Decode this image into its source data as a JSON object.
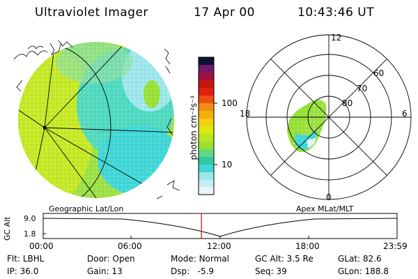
{
  "header": {
    "title": "Ultraviolet Imager",
    "date": "17 Apr 00",
    "time": "10:43:46 UT"
  },
  "colorbar": {
    "unit_label": "photon cm⁻²s⁻¹",
    "ticks": [
      "100",
      "10"
    ],
    "scale": "log",
    "colors": [
      "#e8f4f8",
      "#9fe6ec",
      "#40d6d6",
      "#30c8a0",
      "#9ae030",
      "#d8ec10",
      "#f4d010",
      "#f4a010",
      "#ec5010",
      "#c41810",
      "#8c0830",
      "#3c1050",
      "#101030"
    ]
  },
  "polar": {
    "clock_labels": {
      "top": "12",
      "left": "18",
      "right": "6",
      "bottom": "0"
    },
    "lat_labels": [
      "60",
      "70",
      "80"
    ]
  },
  "captions": {
    "left": "Geographic Lat/Lon",
    "right": "Apex MLat/MLT"
  },
  "timeline": {
    "axis_label": "GC Alt",
    "y_ticks": [
      "9.0",
      "1.8"
    ],
    "x_ticks": [
      "00:00",
      "06:00",
      "12:00",
      "18:00",
      "23:59"
    ],
    "current_time_fraction": 0.4471
  },
  "status": {
    "row1": [
      {
        "label": "Flt:",
        "value": "LBHL"
      },
      {
        "label": "Door:",
        "value": "Open"
      },
      {
        "label": "Mode:",
        "value": "Normal"
      },
      {
        "label": "GC Alt:",
        "value": "3.5 Re"
      },
      {
        "label": "GLat:",
        "value": "82.6"
      }
    ],
    "row2": [
      {
        "label": "IP:",
        "value": "36.0"
      },
      {
        "label": "Gain:",
        "value": "13"
      },
      {
        "label": "Dsp:",
        "value": "-5.9"
      },
      {
        "label": "Seq:",
        "value": "39"
      },
      {
        "label": "GLon:",
        "value": "188.8"
      }
    ]
  }
}
